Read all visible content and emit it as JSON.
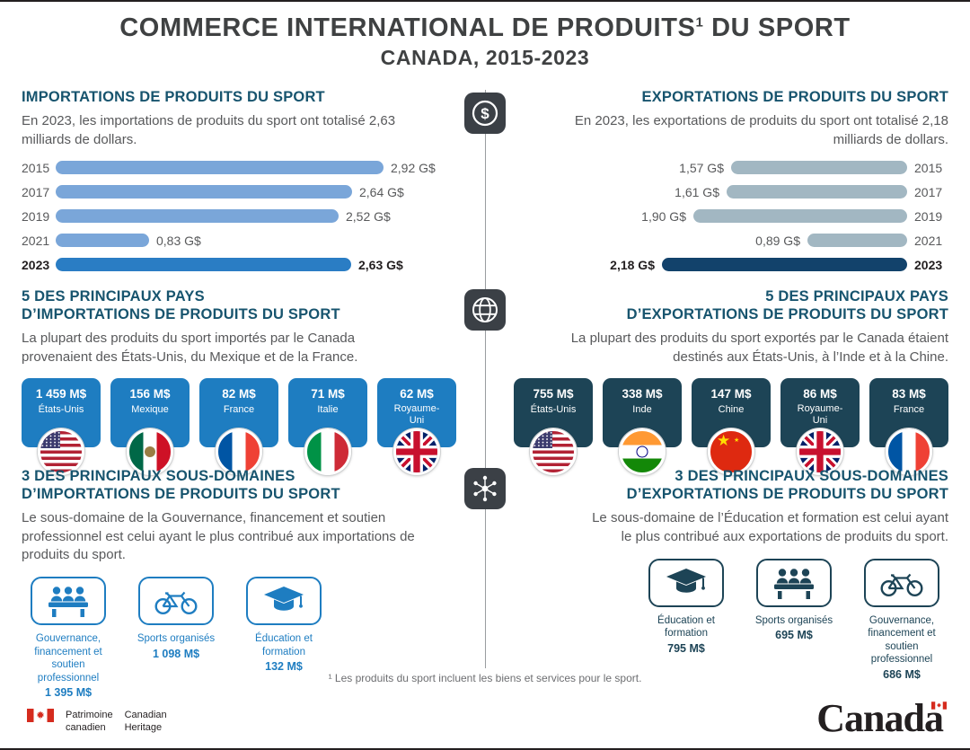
{
  "title": {
    "main": "COMMERCE INTERNATIONAL DE PRODUITS",
    "footnote_marker": "1",
    "main_end": " DU SPORT",
    "subtitle": "CANADA, 2015-2023"
  },
  "divider": {
    "icons": [
      "dollar-coin-icon",
      "globe-icon",
      "network-icon"
    ]
  },
  "imports": {
    "heading": "IMPORTATIONS DE PRODUITS DU SPORT",
    "intro": "En 2023, les importations de produits du sport ont totalisé 2,63 milliards de dollars.",
    "chart": {
      "years": [
        "2015",
        "2017",
        "2019",
        "2021",
        "2023"
      ],
      "labels": [
        "2,92 G$",
        "2,64 G$",
        "2,52 G$",
        "0,83 G$",
        "2,63 G$"
      ]
    },
    "countries_heading": "5 DES PRINCIPAUX PAYS\nD’IMPORTATIONS DE PRODUITS DU SPORT",
    "countries_intro": "La plupart des produits du sport importés par le Canada provenaient des États-Unis, du Mexique et de la France.",
    "countries": [
      {
        "value": "1 459 M$",
        "name": "États-Unis",
        "flag": "united-states"
      },
      {
        "value": "156 M$",
        "name": "Mexique",
        "flag": "mexico"
      },
      {
        "value": "82 M$",
        "name": "France",
        "flag": "france"
      },
      {
        "value": "71 M$",
        "name": "Italie",
        "flag": "italy"
      },
      {
        "value": "62 M$",
        "name": "Royaume-Uni",
        "flag": "united-kingdom"
      }
    ],
    "subdomains_heading": "3 DES PRINCIPAUX SOUS-DOMAINES\nD’IMPORTATIONS DE PRODUITS DU SPORT",
    "subdomains_intro": "Le sous-domaine de la Gouvernance, financement et soutien professionnel est celui ayant le plus contribué aux importations de produits du sport.",
    "subdomains": [
      {
        "label": "Gouvernance, financement et soutien professionnel",
        "value": "1 395 M$",
        "icon": "governance-panel-icon"
      },
      {
        "label": "Sports organisés",
        "value": "1 098 M$",
        "icon": "bicycle-icon"
      },
      {
        "label": "Éducation et formation",
        "value": "132 M$",
        "icon": "graduation-cap-icon"
      }
    ]
  },
  "exports": {
    "heading": "EXPORTATIONS DE PRODUITS DU SPORT",
    "intro": "En 2023, les exportations de produits du sport ont totalisé 2,18 milliards de dollars.",
    "chart": {
      "years": [
        "2015",
        "2017",
        "2019",
        "2021",
        "2023"
      ],
      "labels": [
        "1,57 G$",
        "1,61 G$",
        "1,90 G$",
        "0,89 G$",
        "2,18 G$"
      ]
    },
    "countries_heading": "5 DES PRINCIPAUX PAYS\nD’EXPORTATIONS DE PRODUITS DU SPORT",
    "countries_intro": "La plupart des produits du sport exportés par le Canada étaient destinés aux États-Unis, à l’Inde et à la Chine.",
    "countries": [
      {
        "value": "755 M$",
        "name": "États-Unis",
        "flag": "united-states"
      },
      {
        "value": "338 M$",
        "name": "Inde",
        "flag": "india"
      },
      {
        "value": "147 M$",
        "name": "Chine",
        "flag": "china"
      },
      {
        "value": "86 M$",
        "name": "Royaume-Uni",
        "flag": "united-kingdom"
      },
      {
        "value": "83 M$",
        "name": "France",
        "flag": "france"
      }
    ],
    "subdomains_heading": "3 DES PRINCIPAUX SOUS-DOMAINES\nD’EXPORTATIONS DE PRODUITS DU SPORT",
    "subdomains_intro": "Le sous-domaine de l’Éducation et formation est celui ayant le plus contribué aux exportations de produits du sport.",
    "subdomains": [
      {
        "label": "Éducation et formation",
        "value": "795 M$",
        "icon": "graduation-cap-icon"
      },
      {
        "label": "Sports organisés",
        "value": "695 M$",
        "icon": "governance-panel-icon"
      },
      {
        "label": "Gouvernance, financement et soutien professionnel",
        "value": "686 M$",
        "icon": "bicycle-icon"
      }
    ]
  },
  "footnote": "¹ Les produits du sport incluent les biens et services pour le sport.",
  "footer": {
    "department_fr": "Patrimoine\ncanadien",
    "department_en": "Canadian\nHeritage",
    "wordmark": "Canada"
  },
  "colors": {
    "heading": "#17546e",
    "import_accent": "#1e7dc1",
    "import_bar": "#7aa6d9",
    "import_bar_highlight": "#2a7dc4",
    "export_accent": "#1d4456",
    "export_bar": "#a2b7c2",
    "export_bar_highlight": "#12426b",
    "divider_icon_bg": "#3b4046"
  },
  "chart_data": [
    {
      "type": "bar",
      "title": "Importations de produits du sport, Canada, 2015-2023",
      "orientation": "horizontal",
      "categories": [
        "2015",
        "2017",
        "2019",
        "2021",
        "2023"
      ],
      "values": [
        2.92,
        2.64,
        2.52,
        0.83,
        2.63
      ],
      "unit": "G$",
      "xlabel": "",
      "ylabel": "",
      "xlim": [
        0,
        3
      ],
      "grid": false,
      "legend": false,
      "highlight_category": "2023"
    },
    {
      "type": "bar",
      "title": "Exportations de produits du sport, Canada, 2015-2023",
      "orientation": "horizontal",
      "categories": [
        "2015",
        "2017",
        "2019",
        "2021",
        "2023"
      ],
      "values": [
        1.57,
        1.61,
        1.9,
        0.89,
        2.18
      ],
      "unit": "G$",
      "xlabel": "",
      "ylabel": "",
      "xlim": [
        0,
        3
      ],
      "grid": false,
      "legend": false,
      "highlight_category": "2023"
    }
  ]
}
